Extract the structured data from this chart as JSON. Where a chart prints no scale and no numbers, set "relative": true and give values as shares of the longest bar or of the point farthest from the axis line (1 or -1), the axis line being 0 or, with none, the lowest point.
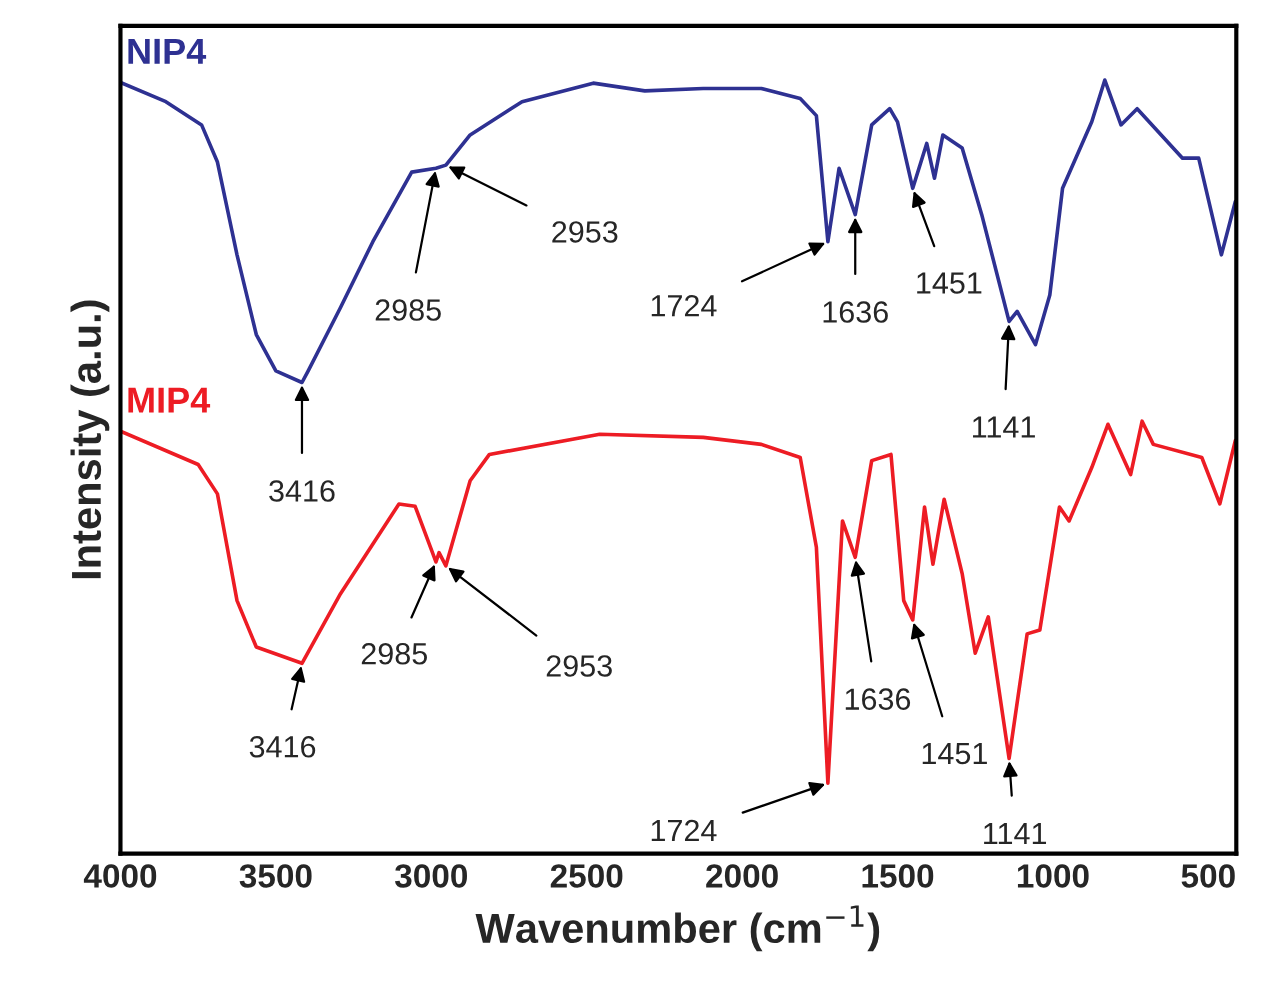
{
  "chart_data": {
    "type": "line",
    "xlabel": "Wavenumber (cm$^{−1}$)",
    "ylabel": "Intensity (a.u.)",
    "relative": true,
    "xlim": [
      4000,
      410
    ],
    "xticks": [
      4000,
      3500,
      3000,
      2500,
      2000,
      1500,
      1000,
      500
    ],
    "legend": false,
    "grid": false,
    "marker": "none",
    "line_style": "solid",
    "series": [
      {
        "name": "NIP4",
        "color": "#2e3192",
        "x": [
          4000,
          3854,
          3739,
          3688,
          3625,
          3563,
          3500,
          3416,
          3396,
          3292,
          3188,
          3063,
          2985,
          2953,
          2875,
          2708,
          2479,
          2313,
          2125,
          1938,
          1813,
          1761,
          1724,
          1688,
          1636,
          1583,
          1525,
          1500,
          1451,
          1406,
          1381,
          1354,
          1292,
          1229,
          1141,
          1115,
          1056,
          1010,
          969,
          875,
          833,
          781,
          729,
          583,
          531,
          458,
          413
        ],
        "values": [
          0.997,
          0.972,
          0.942,
          0.894,
          0.774,
          0.671,
          0.624,
          0.609,
          0.624,
          0.706,
          0.791,
          0.881,
          0.886,
          0.89,
          0.929,
          0.972,
          0.996,
          0.986,
          0.989,
          0.989,
          0.976,
          0.954,
          0.791,
          0.886,
          0.826,
          0.942,
          0.963,
          0.946,
          0.86,
          0.918,
          0.873,
          0.929,
          0.912,
          0.826,
          0.688,
          0.701,
          0.658,
          0.722,
          0.86,
          0.946,
          1,
          0.942,
          0.963,
          0.899,
          0.899,
          0.774,
          0.843
        ]
      },
      {
        "name": "MIP4",
        "color": "#ed1c24",
        "x": [
          4000,
          3750,
          3688,
          3625,
          3563,
          3416,
          3292,
          3104,
          3052,
          2985,
          2975,
          2953,
          2875,
          2813,
          2458,
          2125,
          1938,
          1813,
          1761,
          1724,
          1677,
          1636,
          1583,
          1521,
          1480,
          1451,
          1413,
          1386,
          1350,
          1292,
          1250,
          1208,
          1141,
          1083,
          1042,
          979,
          948,
          875,
          823,
          750,
          713,
          677,
          521,
          463,
          413
        ],
        "values": [
          0.546,
          0.503,
          0.465,
          0.327,
          0.267,
          0.246,
          0.336,
          0.452,
          0.449,
          0.377,
          0.389,
          0.372,
          0.482,
          0.516,
          0.542,
          0.538,
          0.529,
          0.512,
          0.396,
          0.091,
          0.43,
          0.383,
          0.508,
          0.516,
          0.327,
          0.302,
          0.448,
          0.374,
          0.458,
          0.362,
          0.259,
          0.306,
          0.123,
          0.284,
          0.289,
          0.448,
          0.43,
          0.499,
          0.555,
          0.49,
          0.559,
          0.529,
          0.512,
          0.452,
          0.534
        ]
      }
    ],
    "annotations": [
      {
        "text": "3416",
        "x": 3416,
        "y": 0.609
      },
      {
        "text": "2985",
        "x": 2985,
        "y": 0.886
      },
      {
        "text": "2953",
        "x": 2953,
        "y": 0.89
      },
      {
        "text": "1724",
        "x": 1724,
        "y": 0.791
      },
      {
        "text": "1636",
        "x": 1636,
        "y": 0.826
      },
      {
        "text": "1451",
        "x": 1451,
        "y": 0.86
      },
      {
        "text": "1141",
        "x": 1141,
        "y": 0.688
      },
      {
        "text": "3416",
        "x": 3416,
        "y": 0.246
      },
      {
        "text": "2985",
        "x": 2985,
        "y": 0.377
      },
      {
        "text": "2953",
        "x": 2953,
        "y": 0.372
      },
      {
        "text": "1724",
        "x": 1724,
        "y": 0.091
      },
      {
        "text": "1636",
        "x": 1636,
        "y": 0.383
      },
      {
        "text": "1451",
        "x": 1451,
        "y": 0.302
      },
      {
        "text": "1141",
        "x": 1141,
        "y": 0.123
      }
    ]
  }
}
